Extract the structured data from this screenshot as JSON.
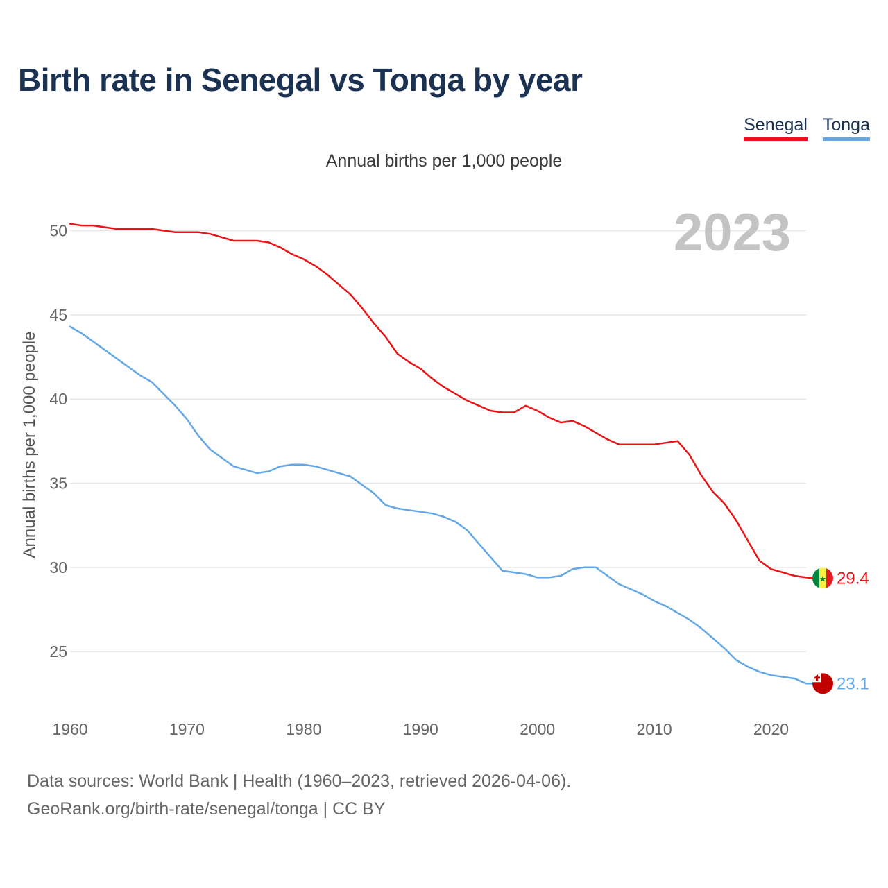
{
  "title": "Birth rate in Senegal vs Tonga by year",
  "subtitle": "Annual births per 1,000 people",
  "legend": [
    {
      "name": "Senegal",
      "color": "#e81416"
    },
    {
      "name": "Tonga",
      "color": "#63a7e6"
    }
  ],
  "year_label": "2023",
  "source_line1": "Data sources: World Bank | Health (1960–2023, retrieved 2026-04-06).",
  "source_line2": "GeoRank.org/birth-rate/senegal/tonga | CC BY",
  "chart_data": {
    "type": "line",
    "title": "Birth rate in Senegal vs Tonga by year",
    "xlabel": "",
    "ylabel": "Annual births per 1,000 people",
    "xlim": [
      1960,
      2023
    ],
    "ylim": [
      22,
      51.5
    ],
    "xticks": [
      1960,
      1970,
      1980,
      1990,
      2000,
      2010,
      2020
    ],
    "yticks": [
      25,
      30,
      35,
      40,
      45,
      50
    ],
    "grid": true,
    "x": [
      1960,
      1961,
      1962,
      1963,
      1964,
      1965,
      1966,
      1967,
      1968,
      1969,
      1970,
      1971,
      1972,
      1973,
      1974,
      1975,
      1976,
      1977,
      1978,
      1979,
      1980,
      1981,
      1982,
      1983,
      1984,
      1985,
      1986,
      1987,
      1988,
      1989,
      1990,
      1991,
      1992,
      1993,
      1994,
      1995,
      1996,
      1997,
      1998,
      1999,
      2000,
      2001,
      2002,
      2003,
      2004,
      2005,
      2006,
      2007,
      2008,
      2009,
      2010,
      2011,
      2012,
      2013,
      2014,
      2015,
      2016,
      2017,
      2018,
      2019,
      2020,
      2021,
      2022,
      2023
    ],
    "series": [
      {
        "name": "Senegal",
        "color": "#e81416",
        "end_label": "29.4",
        "values": [
          50.4,
          50.3,
          50.3,
          50.2,
          50.1,
          50.1,
          50.1,
          50.1,
          50.0,
          49.9,
          49.9,
          49.9,
          49.8,
          49.6,
          49.4,
          49.4,
          49.4,
          49.3,
          49.0,
          48.6,
          48.3,
          47.9,
          47.4,
          46.8,
          46.2,
          45.4,
          44.5,
          43.7,
          42.7,
          42.2,
          41.8,
          41.2,
          40.7,
          40.3,
          39.9,
          39.6,
          39.3,
          39.2,
          39.2,
          39.6,
          39.3,
          38.9,
          38.6,
          38.7,
          38.4,
          38.0,
          37.6,
          37.3,
          37.3,
          37.3,
          37.3,
          37.4,
          37.5,
          36.7,
          35.5,
          34.5,
          33.8,
          32.8,
          31.6,
          30.4,
          29.9,
          29.7,
          29.5,
          29.4
        ]
      },
      {
        "name": "Tonga",
        "color": "#63a7e6",
        "end_label": "23.1",
        "values": [
          44.3,
          43.9,
          43.4,
          42.9,
          42.4,
          41.9,
          41.4,
          41.0,
          40.3,
          39.6,
          38.8,
          37.8,
          37.0,
          36.5,
          36.0,
          35.8,
          35.6,
          35.7,
          36.0,
          36.1,
          36.1,
          36.0,
          35.8,
          35.6,
          35.4,
          34.9,
          34.4,
          33.7,
          33.5,
          33.4,
          33.3,
          33.2,
          33.0,
          32.7,
          32.2,
          31.4,
          30.6,
          29.8,
          29.7,
          29.6,
          29.4,
          29.4,
          29.5,
          29.9,
          30.0,
          30.0,
          29.5,
          29.0,
          28.7,
          28.4,
          28.0,
          27.7,
          27.3,
          26.9,
          26.4,
          25.8,
          25.2,
          24.5,
          24.1,
          23.8,
          23.6,
          23.5,
          23.4,
          23.1
        ]
      }
    ]
  }
}
